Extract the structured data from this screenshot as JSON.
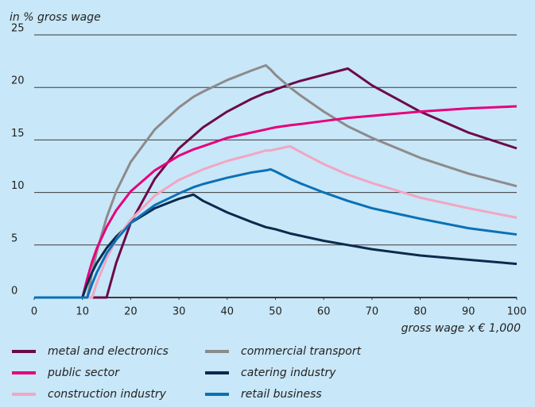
{
  "chart_data": {
    "type": "line",
    "y_label": "in % gross wage",
    "x_label": "gross wage x € 1,000",
    "x": [
      0,
      10,
      11,
      12,
      13,
      15,
      17,
      20,
      25,
      30,
      33,
      35,
      40,
      45,
      48,
      49,
      50,
      53,
      55,
      60,
      65,
      70,
      80,
      90,
      100
    ],
    "series": [
      {
        "name": "metal and electronics",
        "color": "#6b0a4a",
        "values": [
          0,
          0,
          0,
          0,
          0,
          0,
          3.3,
          7.1,
          11.3,
          14.2,
          15.4,
          16.2,
          17.7,
          18.9,
          19.5,
          19.6,
          19.8,
          20.3,
          20.6,
          21.2,
          21.8,
          20.2,
          17.7,
          15.7,
          14.2
        ]
      },
      {
        "name": "commercial transport",
        "color": "#8e8a8c",
        "values": [
          0,
          0,
          0,
          2.4,
          4.4,
          7.6,
          10.1,
          12.9,
          16.0,
          18.1,
          19.1,
          19.6,
          20.7,
          21.6,
          22.1,
          21.7,
          21.2,
          20.0,
          19.3,
          17.7,
          16.3,
          15.2,
          13.3,
          11.8,
          10.6
        ]
      },
      {
        "name": "public sector",
        "color": "#e5007d",
        "values": [
          0,
          0,
          1.8,
          3.4,
          4.7,
          6.7,
          8.3,
          10.1,
          12.1,
          13.5,
          14.1,
          14.4,
          15.2,
          15.7,
          16.0,
          16.1,
          16.2,
          16.4,
          16.5,
          16.8,
          17.1,
          17.3,
          17.7,
          18.0,
          18.2
        ]
      },
      {
        "name": "catering industry",
        "color": "#0c2a4d",
        "values": [
          0,
          0,
          1.3,
          2.4,
          3.3,
          4.7,
          5.8,
          7.1,
          8.5,
          9.4,
          9.8,
          9.2,
          8.1,
          7.2,
          6.7,
          6.6,
          6.5,
          6.1,
          5.9,
          5.4,
          5.0,
          4.6,
          4.0,
          3.6,
          3.2
        ]
      },
      {
        "name": "construction industry",
        "color": "#f3a5c2",
        "values": [
          0,
          0,
          0,
          0,
          1.4,
          3.7,
          5.5,
          7.4,
          9.7,
          11.2,
          11.8,
          12.2,
          13.0,
          13.6,
          14.0,
          14.0,
          14.1,
          14.4,
          13.9,
          12.7,
          11.7,
          10.9,
          9.5,
          8.5,
          7.6
        ]
      },
      {
        "name": "retail business",
        "color": "#0a71b6",
        "values": [
          0,
          0,
          0,
          1.3,
          2.4,
          4.2,
          5.5,
          7.1,
          8.8,
          9.9,
          10.5,
          10.8,
          11.4,
          11.9,
          12.1,
          12.2,
          12.0,
          11.3,
          10.9,
          10.0,
          9.2,
          8.5,
          7.5,
          6.6,
          6.0
        ]
      }
    ],
    "xlim": [
      0,
      100
    ],
    "xticks": [
      0,
      10,
      20,
      30,
      40,
      50,
      60,
      70,
      80,
      90,
      100
    ],
    "ylim": [
      0,
      25
    ],
    "yticks": [
      0,
      5,
      10,
      15,
      20,
      25
    ],
    "grid": true
  }
}
